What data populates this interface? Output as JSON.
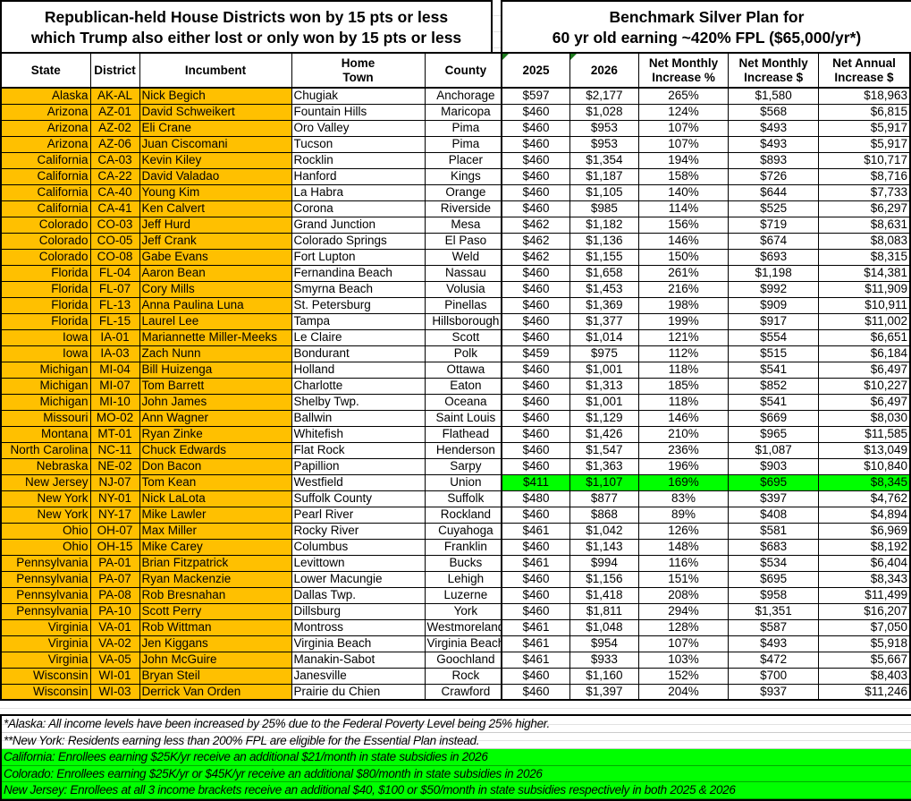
{
  "left_title": [
    "Republican-held House Districts won by 15 pts or less",
    "which Trump also either lost or only won by 15 pts or less"
  ],
  "right_title": [
    "Benchmark Silver Plan for",
    "60 yr old earning ~420% FPL ($65,000/yr*)"
  ],
  "left_headers": [
    "State",
    "District",
    "Incumbent",
    "Home Town",
    "County"
  ],
  "right_headers": [
    "2025",
    "2026",
    "Net Monthly Increase %",
    "Net Monthly Increase $",
    "Net Annual Increase $"
  ],
  "colors": {
    "highlight_orange": "#ffc000",
    "highlight_green": "#00ff00"
  },
  "rows": [
    [
      "Alaska",
      "AK-AL",
      "Nick Begich",
      "Chugiak",
      "Anchorage",
      "$597",
      "$2,177",
      "265%",
      "$1,580",
      "$18,963"
    ],
    [
      "Arizona",
      "AZ-01",
      "David Schweikert",
      "Fountain Hills",
      "Maricopa",
      "$460",
      "$1,028",
      "124%",
      "$568",
      "$6,815"
    ],
    [
      "Arizona",
      "AZ-02",
      "Eli Crane",
      "Oro Valley",
      "Pima",
      "$460",
      "$953",
      "107%",
      "$493",
      "$5,917"
    ],
    [
      "Arizona",
      "AZ-06",
      "Juan Ciscomani",
      "Tucson",
      "Pima",
      "$460",
      "$953",
      "107%",
      "$493",
      "$5,917"
    ],
    [
      "California",
      "CA-03",
      "Kevin Kiley",
      "Rocklin",
      "Placer",
      "$460",
      "$1,354",
      "194%",
      "$893",
      "$10,717"
    ],
    [
      "California",
      "CA-22",
      "David Valadao",
      "Hanford",
      "Kings",
      "$460",
      "$1,187",
      "158%",
      "$726",
      "$8,716"
    ],
    [
      "California",
      "CA-40",
      "Young Kim",
      "La Habra",
      "Orange",
      "$460",
      "$1,105",
      "140%",
      "$644",
      "$7,733"
    ],
    [
      "California",
      "CA-41",
      "Ken Calvert",
      "Corona",
      "Riverside",
      "$460",
      "$985",
      "114%",
      "$525",
      "$6,297"
    ],
    [
      "Colorado",
      "CO-03",
      "Jeff Hurd",
      "Grand Junction",
      "Mesa",
      "$462",
      "$1,182",
      "156%",
      "$719",
      "$8,631"
    ],
    [
      "Colorado",
      "CO-05",
      "Jeff Crank",
      "Colorado Springs",
      "El Paso",
      "$462",
      "$1,136",
      "146%",
      "$674",
      "$8,083"
    ],
    [
      "Colorado",
      "CO-08",
      "Gabe Evans",
      "Fort Lupton",
      "Weld",
      "$462",
      "$1,155",
      "150%",
      "$693",
      "$8,315"
    ],
    [
      "Florida",
      "FL-04",
      "Aaron Bean",
      "Fernandina Beach",
      "Nassau",
      "$460",
      "$1,658",
      "261%",
      "$1,198",
      "$14,381"
    ],
    [
      "Florida",
      "FL-07",
      "Cory Mills",
      "Smyrna Beach",
      "Volusia",
      "$460",
      "$1,453",
      "216%",
      "$992",
      "$11,909"
    ],
    [
      "Florida",
      "FL-13",
      "Anna Paulina Luna",
      "St. Petersburg",
      "Pinellas",
      "$460",
      "$1,369",
      "198%",
      "$909",
      "$10,911"
    ],
    [
      "Florida",
      "FL-15",
      "Laurel Lee",
      "Tampa",
      "Hillsborough",
      "$460",
      "$1,377",
      "199%",
      "$917",
      "$11,002"
    ],
    [
      "Iowa",
      "IA-01",
      "Mariannette Miller-Meeks",
      "Le Claire",
      "Scott",
      "$460",
      "$1,014",
      "121%",
      "$554",
      "$6,651"
    ],
    [
      "Iowa",
      "IA-03",
      "Zach Nunn",
      "Bondurant",
      "Polk",
      "$459",
      "$975",
      "112%",
      "$515",
      "$6,184"
    ],
    [
      "Michigan",
      "MI-04",
      "Bill Huizenga",
      "Holland",
      "Ottawa",
      "$460",
      "$1,001",
      "118%",
      "$541",
      "$6,497"
    ],
    [
      "Michigan",
      "MI-07",
      "Tom Barrett",
      "Charlotte",
      "Eaton",
      "$460",
      "$1,313",
      "185%",
      "$852",
      "$10,227"
    ],
    [
      "Michigan",
      "MI-10",
      "John James",
      "Shelby Twp.",
      "Oceana",
      "$460",
      "$1,001",
      "118%",
      "$541",
      "$6,497"
    ],
    [
      "Missouri",
      "MO-02",
      "Ann Wagner",
      "Ballwin",
      "Saint Louis",
      "$460",
      "$1,129",
      "146%",
      "$669",
      "$8,030"
    ],
    [
      "Montana",
      "MT-01",
      "Ryan Zinke",
      "Whitefish",
      "Flathead",
      "$460",
      "$1,426",
      "210%",
      "$965",
      "$11,585"
    ],
    [
      "North Carolina",
      "NC-11",
      "Chuck Edwards",
      "Flat Rock",
      "Henderson",
      "$460",
      "$1,547",
      "236%",
      "$1,087",
      "$13,049"
    ],
    [
      "Nebraska",
      "NE-02",
      "Don Bacon",
      "Papillion",
      "Sarpy",
      "$460",
      "$1,363",
      "196%",
      "$903",
      "$10,840"
    ],
    [
      "New Jersey",
      "NJ-07",
      "Tom Kean",
      "Westfield",
      "Union",
      "$411",
      "$1,107",
      "169%",
      "$695",
      "$8,345"
    ],
    [
      "New York",
      "NY-01",
      "Nick LaLota",
      "Suffolk County",
      "Suffolk",
      "$480",
      "$877",
      "83%",
      "$397",
      "$4,762"
    ],
    [
      "New York",
      "NY-17",
      "Mike Lawler",
      "Pearl River",
      "Rockland",
      "$460",
      "$868",
      "89%",
      "$408",
      "$4,894"
    ],
    [
      "Ohio",
      "OH-07",
      "Max Miller",
      "Rocky River",
      "Cuyahoga",
      "$461",
      "$1,042",
      "126%",
      "$581",
      "$6,969"
    ],
    [
      "Ohio",
      "OH-15",
      "Mike Carey",
      "Columbus",
      "Franklin",
      "$460",
      "$1,143",
      "148%",
      "$683",
      "$8,192"
    ],
    [
      "Pennsylvania",
      "PA-01",
      "Brian Fitzpatrick",
      "Levittown",
      "Bucks",
      "$461",
      "$994",
      "116%",
      "$534",
      "$6,404"
    ],
    [
      "Pennsylvania",
      "PA-07",
      "Ryan Mackenzie",
      "Lower Macungie",
      "Lehigh",
      "$460",
      "$1,156",
      "151%",
      "$695",
      "$8,343"
    ],
    [
      "Pennsylvania",
      "PA-08",
      "Rob Bresnahan",
      "Dallas Twp.",
      "Luzerne",
      "$460",
      "$1,418",
      "208%",
      "$958",
      "$11,499"
    ],
    [
      "Pennsylvania",
      "PA-10",
      "Scott Perry",
      "Dillsburg",
      "York",
      "$460",
      "$1,811",
      "294%",
      "$1,351",
      "$16,207"
    ],
    [
      "Virginia",
      "VA-01",
      "Rob Wittman",
      "Montross",
      "Westmoreland",
      "$461",
      "$1,048",
      "128%",
      "$587",
      "$7,050"
    ],
    [
      "Virginia",
      "VA-02",
      "Jen Kiggans",
      "Virginia Beach",
      "Virginia Beach",
      "$461",
      "$954",
      "107%",
      "$493",
      "$5,918"
    ],
    [
      "Virginia",
      "VA-05",
      "John McGuire",
      "Manakin-Sabot",
      "Goochland",
      "$461",
      "$933",
      "103%",
      "$472",
      "$5,667"
    ],
    [
      "Wisconsin",
      "WI-01",
      "Bryan Steil",
      "Janesville",
      "Rock",
      "$460",
      "$1,160",
      "152%",
      "$700",
      "$8,403"
    ],
    [
      "Wisconsin",
      "WI-03",
      "Derrick Van Orden",
      "Prairie du Chien",
      "Crawford",
      "$460",
      "$1,397",
      "204%",
      "$937",
      "$11,246"
    ]
  ],
  "green_rows": [
    "NJ-07"
  ],
  "notes": [
    {
      "text": "*Alaska: All income levels have been increased by 25% due to the Federal Poverty Level being 25% higher.",
      "green": false
    },
    {
      "text": "**New York: Residents earning less than 200% FPL are eligible for the Essential Plan instead.",
      "green": false
    },
    {
      "text": "California: Enrollees earning $25K/yr receive an additional $21/month in state subsidies in 2026",
      "green": true
    },
    {
      "text": "Colorado: Enrollees earning $25K/yr or $45K/yr receive an additional $80/month in state subsidies in 2026",
      "green": true
    },
    {
      "text": "New Jersey: Enrollees at all 3 income brackets receive an additional $40, $100 or $50/month in state subsidies respectively in both 2025 & 2026",
      "green": true
    }
  ]
}
